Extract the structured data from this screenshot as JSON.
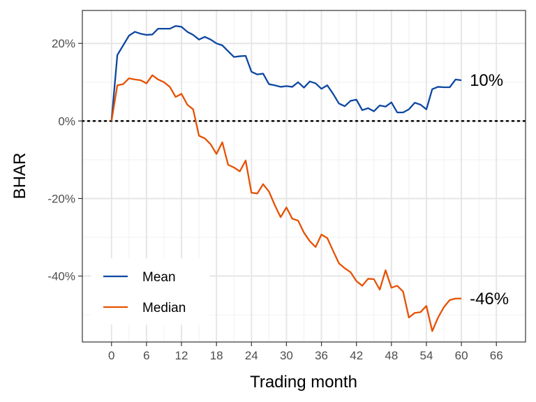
{
  "chart_data": {
    "type": "line",
    "xlabel": "Trading month",
    "ylabel": "BHAR",
    "xlim": [
      -5,
      71
    ],
    "ylim": [
      -0.57,
      0.285
    ],
    "xticks": [
      0,
      6,
      12,
      18,
      24,
      30,
      36,
      42,
      48,
      54,
      60,
      66
    ],
    "yticks": [
      -0.4,
      -0.2,
      0,
      0.2
    ],
    "ytick_labels": [
      "-40%",
      "-20%",
      "0%",
      "20%"
    ],
    "reference_line": {
      "y": 0,
      "style": "dotted"
    },
    "grid": true,
    "legend_position": "bottom-left",
    "series": [
      {
        "name": "Mean",
        "color": "#0d47a1",
        "end_label": "10%",
        "x": [
          0,
          1,
          2,
          3,
          4,
          5,
          6,
          7,
          8,
          9,
          10,
          11,
          12,
          13,
          14,
          15,
          16,
          17,
          18,
          19,
          20,
          21,
          22,
          23,
          24,
          25,
          26,
          27,
          28,
          29,
          30,
          31,
          32,
          33,
          34,
          35,
          36,
          37,
          38,
          39,
          40,
          41,
          42,
          43,
          44,
          45,
          46,
          47,
          48,
          49,
          50,
          51,
          52,
          53,
          54,
          55,
          56,
          57,
          58,
          59,
          60
        ],
        "values": [
          0.0,
          0.17,
          0.195,
          0.22,
          0.23,
          0.225,
          0.222,
          0.223,
          0.238,
          0.238,
          0.238,
          0.245,
          0.243,
          0.23,
          0.222,
          0.21,
          0.217,
          0.21,
          0.2,
          0.195,
          0.18,
          0.165,
          0.167,
          0.168,
          0.127,
          0.12,
          0.122,
          0.095,
          0.092,
          0.088,
          0.09,
          0.088,
          0.1,
          0.086,
          0.102,
          0.097,
          0.083,
          0.092,
          0.07,
          0.045,
          0.038,
          0.052,
          0.055,
          0.028,
          0.033,
          0.025,
          0.04,
          0.037,
          0.048,
          0.022,
          0.022,
          0.03,
          0.047,
          0.042,
          0.03,
          0.082,
          0.088,
          0.087,
          0.087,
          0.107,
          0.105
        ]
      },
      {
        "name": "Median",
        "color": "#e65100",
        "end_label": "-46%",
        "x": [
          0,
          1,
          2,
          3,
          4,
          5,
          6,
          7,
          8,
          9,
          10,
          11,
          12,
          13,
          14,
          15,
          16,
          17,
          18,
          19,
          20,
          21,
          22,
          23,
          24,
          25,
          26,
          27,
          28,
          29,
          30,
          31,
          32,
          33,
          34,
          35,
          36,
          37,
          38,
          39,
          40,
          41,
          42,
          43,
          44,
          45,
          46,
          47,
          48,
          49,
          50,
          51,
          52,
          53,
          54,
          55,
          56,
          57,
          58,
          59,
          60
        ],
        "values": [
          0.0,
          0.092,
          0.095,
          0.11,
          0.107,
          0.105,
          0.097,
          0.118,
          0.107,
          0.1,
          0.088,
          0.062,
          0.07,
          0.042,
          0.03,
          -0.038,
          -0.045,
          -0.06,
          -0.085,
          -0.055,
          -0.113,
          -0.12,
          -0.13,
          -0.102,
          -0.185,
          -0.187,
          -0.163,
          -0.182,
          -0.217,
          -0.248,
          -0.223,
          -0.252,
          -0.257,
          -0.288,
          -0.31,
          -0.325,
          -0.293,
          -0.302,
          -0.335,
          -0.367,
          -0.38,
          -0.39,
          -0.413,
          -0.425,
          -0.407,
          -0.408,
          -0.435,
          -0.385,
          -0.43,
          -0.425,
          -0.44,
          -0.507,
          -0.495,
          -0.493,
          -0.477,
          -0.542,
          -0.507,
          -0.48,
          -0.462,
          -0.458,
          -0.458
        ]
      }
    ]
  }
}
